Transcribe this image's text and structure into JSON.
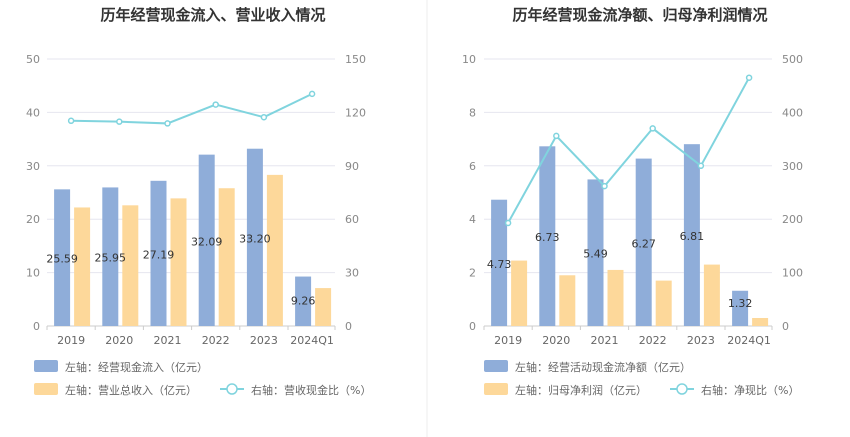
{
  "colors": {
    "bar_left": "#8fadd9",
    "bar_right": "#fdd89a",
    "line": "#80d4de",
    "divider": "#eeeeee"
  },
  "chart_data": [
    {
      "type": "bar",
      "title": "历年经营现金流入、营业收入情况",
      "categories": [
        "2019",
        "2020",
        "2021",
        "2022",
        "2023",
        "2024Q1"
      ],
      "y_left": {
        "ticks": [
          0,
          10,
          20,
          30,
          40,
          50
        ],
        "lim": [
          0,
          50
        ]
      },
      "y_right": {
        "ticks": [
          0,
          30,
          60,
          90,
          120,
          150
        ],
        "lim": [
          0,
          150
        ]
      },
      "series": [
        {
          "name": "左轴：经营现金流入（亿元）",
          "type": "bar",
          "axis": "left",
          "values": [
            25.59,
            25.95,
            27.19,
            32.09,
            33.2,
            9.26
          ],
          "labels": [
            "25.59",
            "25.95",
            "27.19",
            "32.09",
            "33.20",
            "9.26"
          ]
        },
        {
          "name": "左轴：营业总收入（亿元）",
          "type": "bar",
          "axis": "left",
          "values": [
            22.2,
            22.6,
            23.9,
            25.8,
            28.3,
            7.1
          ]
        },
        {
          "name": "右轴：营收现金比（%）",
          "type": "line",
          "axis": "right",
          "values": [
            115.3,
            114.8,
            113.8,
            124.4,
            117.3,
            130.4
          ]
        }
      ],
      "legend": {
        "row1": [
          "左轴：经营现金流入（亿元）"
        ],
        "row2": [
          "左轴：营业总收入（亿元）",
          "右轴：营收现金比（%）"
        ]
      },
      "grid": true
    },
    {
      "type": "bar",
      "title": "历年经营现金流净额、归母净利润情况",
      "categories": [
        "2019",
        "2020",
        "2021",
        "2022",
        "2023",
        "2024Q1"
      ],
      "y_left": {
        "ticks": [
          0,
          2,
          4,
          6,
          8,
          10
        ],
        "lim": [
          0,
          10
        ]
      },
      "y_right": {
        "ticks": [
          0,
          100,
          200,
          300,
          400,
          500
        ],
        "lim": [
          0,
          500
        ]
      },
      "series": [
        {
          "name": "左轴：经营活动现金流净额（亿元）",
          "type": "bar",
          "axis": "left",
          "values": [
            4.73,
            6.73,
            5.49,
            6.27,
            6.81,
            1.32
          ],
          "labels": [
            "4.73",
            "6.73",
            "5.49",
            "6.27",
            "6.81",
            "1.32"
          ]
        },
        {
          "name": "左轴：归母净利润（亿元）",
          "type": "bar",
          "axis": "left",
          "values": [
            2.45,
            1.9,
            2.1,
            1.7,
            2.3,
            0.3
          ]
        },
        {
          "name": "右轴：净现比（%）",
          "type": "line",
          "axis": "right",
          "values": [
            193,
            356,
            262,
            370,
            300,
            465
          ]
        }
      ],
      "legend": {
        "row1": [
          "左轴：经营活动现金流净额（亿元）"
        ],
        "row2": [
          "左轴：归母净利润（亿元）",
          "右轴：净现比（%）"
        ]
      },
      "grid": true
    }
  ]
}
